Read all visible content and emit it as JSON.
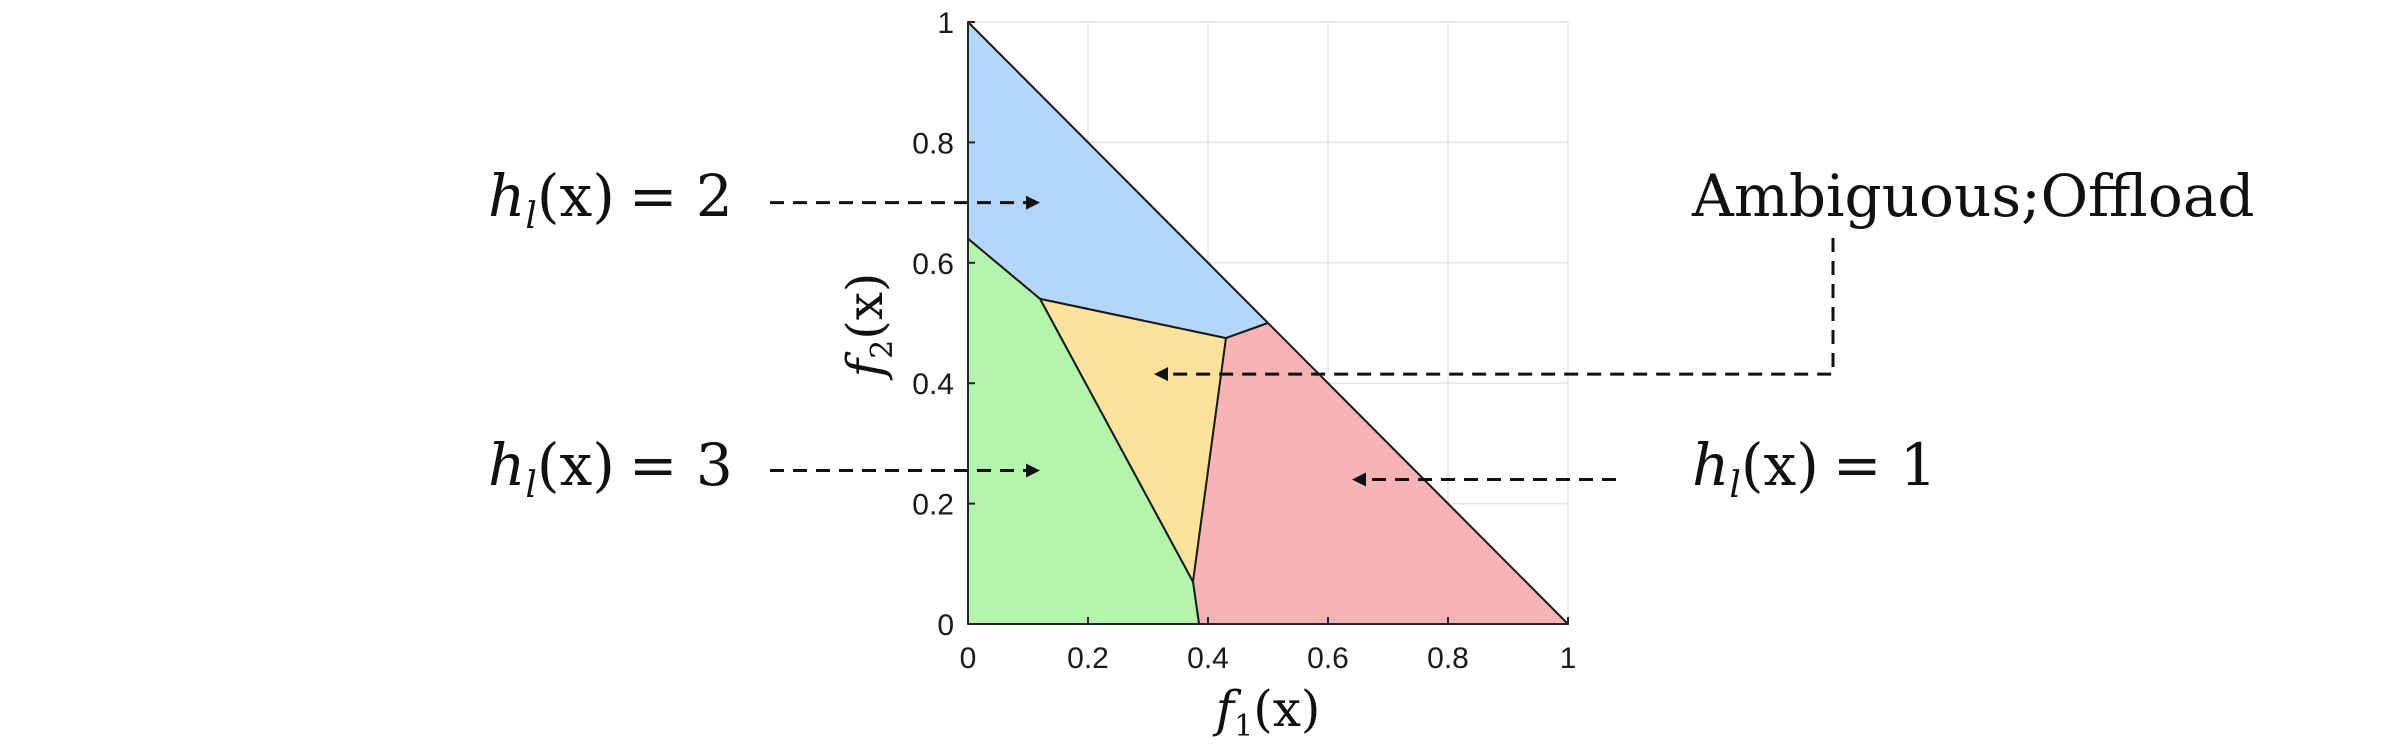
{
  "chart_data": {
    "type": "area",
    "xlim": [
      0,
      1
    ],
    "ylim": [
      0,
      1
    ],
    "x_ticks": [
      "0",
      "0.2",
      "0.4",
      "0.6",
      "0.8",
      "1"
    ],
    "y_ticks": [
      "0",
      "0.2",
      "0.4",
      "0.6",
      "0.8",
      "1"
    ],
    "xlabel": {
      "f": "f",
      "sub": "1",
      "arg": "(x)"
    },
    "ylabel": {
      "f": "f",
      "sub": "2",
      "arg": "(x)"
    },
    "grid": true,
    "regions": [
      {
        "key": "h2",
        "color": "#b5d6fb",
        "points": [
          [
            0,
            1
          ],
          [
            0,
            0.64
          ],
          [
            0.12,
            0.54
          ],
          [
            0.43,
            0.475
          ],
          [
            0.5,
            0.5
          ]
        ]
      },
      {
        "key": "amb",
        "color": "#fde29c",
        "points": [
          [
            0.12,
            0.54
          ],
          [
            0.43,
            0.475
          ],
          [
            0.375,
            0.07
          ]
        ]
      },
      {
        "key": "h1",
        "color": "#f8b4b4",
        "points": [
          [
            0.43,
            0.475
          ],
          [
            0.5,
            0.5
          ],
          [
            1,
            0
          ],
          [
            0.385,
            0
          ],
          [
            0.375,
            0.07
          ]
        ]
      },
      {
        "key": "h3",
        "color": "#b3f5ad",
        "points": [
          [
            0,
            0.64
          ],
          [
            0.12,
            0.54
          ],
          [
            0.375,
            0.07
          ],
          [
            0.385,
            0
          ],
          [
            0,
            0
          ]
        ]
      }
    ],
    "annotations": [
      {
        "key": "h2",
        "h": "h",
        "sub": "l",
        "arg": "(x)",
        "eq": "= 2",
        "arrow_to": [
          0.12,
          0.7
        ]
      },
      {
        "key": "h3",
        "h": "h",
        "sub": "l",
        "arg": "(x)",
        "eq": "= 3",
        "arrow_to": [
          0.12,
          0.255
        ]
      },
      {
        "key": "h1",
        "h": "h",
        "sub": "l",
        "arg": "(x)",
        "eq": "= 1",
        "arrow_to": [
          0.64,
          0.24
        ]
      },
      {
        "key": "amb",
        "text": "Ambiguous;Offload",
        "arrow_to": [
          0.31,
          0.415
        ]
      }
    ]
  }
}
